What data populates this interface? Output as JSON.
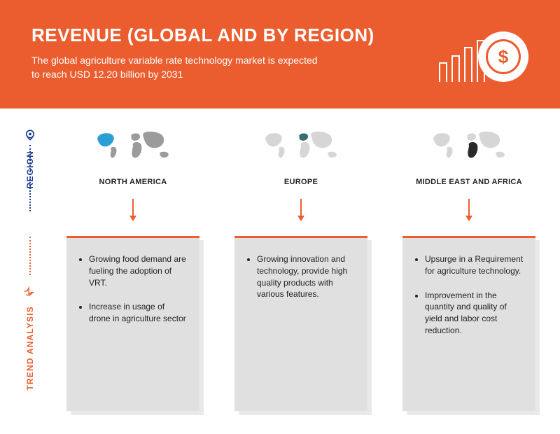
{
  "header": {
    "title": "REVENUE (GLOBAL AND BY REGION)",
    "subtitle": "The global agriculture variable rate technology market is expected to reach USD 12.20 billion by 2031",
    "bg_color": "#eb5d2e",
    "text_color": "#ffffff",
    "bar_heights": [
      28,
      38,
      50,
      60
    ],
    "bar_color": "#ffffff",
    "coin_symbol": "$"
  },
  "side_rail": {
    "region": {
      "label": "REGION",
      "color": "#1b3f92",
      "icon": "pin"
    },
    "trend": {
      "label": "TREND ANALYSIS",
      "color": "#eb5d2e",
      "icon": "hand"
    },
    "dot_color_top": "#1b3f92",
    "dot_color_bottom": "#eb5d2e"
  },
  "arrow_color": "#eb5d2e",
  "regions": [
    {
      "name": "NORTH AMERICA",
      "highlight_color": "#2a9fd6",
      "base_map_color": "#9b9b9b",
      "bullets": [
        "Growing food demand are fueling the adoption of VRT.",
        "Increase in usage of drone in agriculture sector"
      ]
    },
    {
      "name": "EUROPE",
      "highlight_color": "#3a6e6e",
      "base_map_color": "#d6d6d6",
      "bullets": [
        "Growing innovation and technology, provide high quality products with various features."
      ]
    },
    {
      "name": "MIDDLE EAST AND AFRICA",
      "highlight_color": "#2a2a2a",
      "base_map_color": "#d6d6d6",
      "bullets": [
        "Upsurge in a Requirement for agriculture technology.",
        "Improvement in the quantity and quality of yield and labor cost reduction."
      ]
    }
  ],
  "card": {
    "bg": "#e0e0e0",
    "shadow_bg": "#e9e9e9",
    "border_top": "#eb5d2e",
    "text_color": "#222222"
  }
}
